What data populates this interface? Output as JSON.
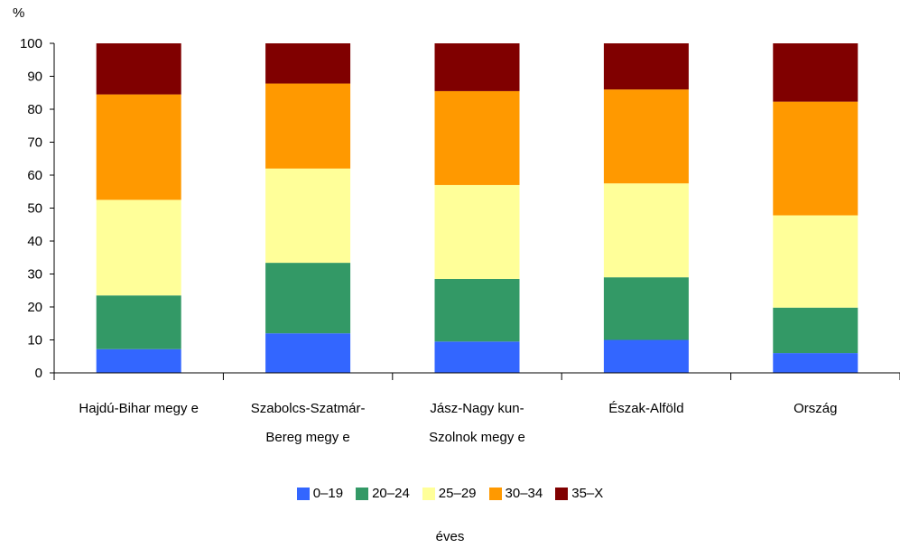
{
  "chart_data": {
    "type": "bar",
    "stacked": true,
    "ylabel": "%",
    "ylim": [
      0,
      100
    ],
    "yticks": [
      0,
      10,
      20,
      30,
      40,
      50,
      60,
      70,
      80,
      90,
      100
    ],
    "xlabel": "éves",
    "categories": [
      [
        "Hajdú-Bihar megy e"
      ],
      [
        "Szabolcs-Szatmár-",
        "Bereg megy e"
      ],
      [
        "Jász-Nagy kun-",
        "Szolnok megy e"
      ],
      [
        "Észak-Alföld"
      ],
      [
        "Ország"
      ]
    ],
    "series": [
      {
        "name": "0–19",
        "color": "#3366ff",
        "values": [
          7.2,
          12.0,
          9.5,
          10.0,
          6.0
        ]
      },
      {
        "name": "20–24",
        "color": "#339966",
        "values": [
          16.3,
          21.4,
          19.0,
          19.0,
          13.8
        ]
      },
      {
        "name": "25–29",
        "color": "#ffff99",
        "values": [
          29.0,
          28.6,
          28.5,
          28.5,
          28.0
        ]
      },
      {
        "name": "30–34",
        "color": "#ff9900",
        "values": [
          32.0,
          25.8,
          28.5,
          28.5,
          34.5
        ]
      },
      {
        "name": "35–X",
        "color": "#800000",
        "values": [
          15.5,
          12.2,
          14.5,
          14.0,
          17.7
        ]
      }
    ],
    "grid": false,
    "legend_position": "bottom"
  }
}
